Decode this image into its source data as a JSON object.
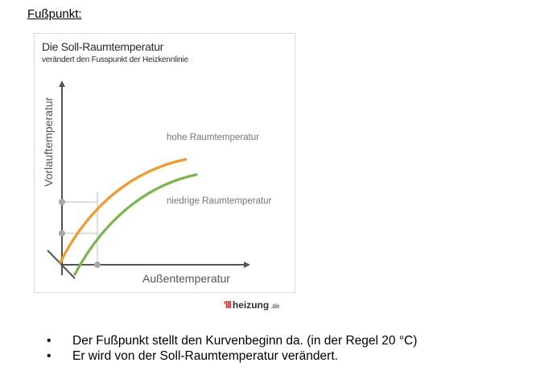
{
  "heading": "Fußpunkt:",
  "figure": {
    "title": "Die Soll-Raumtemperatur",
    "subtitle": "verändert den Fusspunkt der Heizkennlinie",
    "y_axis_label": "Vorlauftemperatur",
    "x_axis_label": "Außentemperatur",
    "label_high": "hohe Raumtemperatur",
    "label_low": "niedrige Raumtemperatur",
    "color_high": "#f39a2c",
    "color_low": "#77b84a",
    "color_axis": "#555555",
    "color_guides": "#bdbdbd"
  },
  "brand": {
    "mark": "'lll",
    "name": "heizung",
    "tld": ".de",
    "mark_color": "#e32020"
  },
  "bullets": [
    "Der Fußpunkt stellt den Kurvenbeginn da. (in der Regel 20 °C)",
    "Er wird von der Soll-Raumtemperatur verändert."
  ],
  "bullet_symbol": "•"
}
